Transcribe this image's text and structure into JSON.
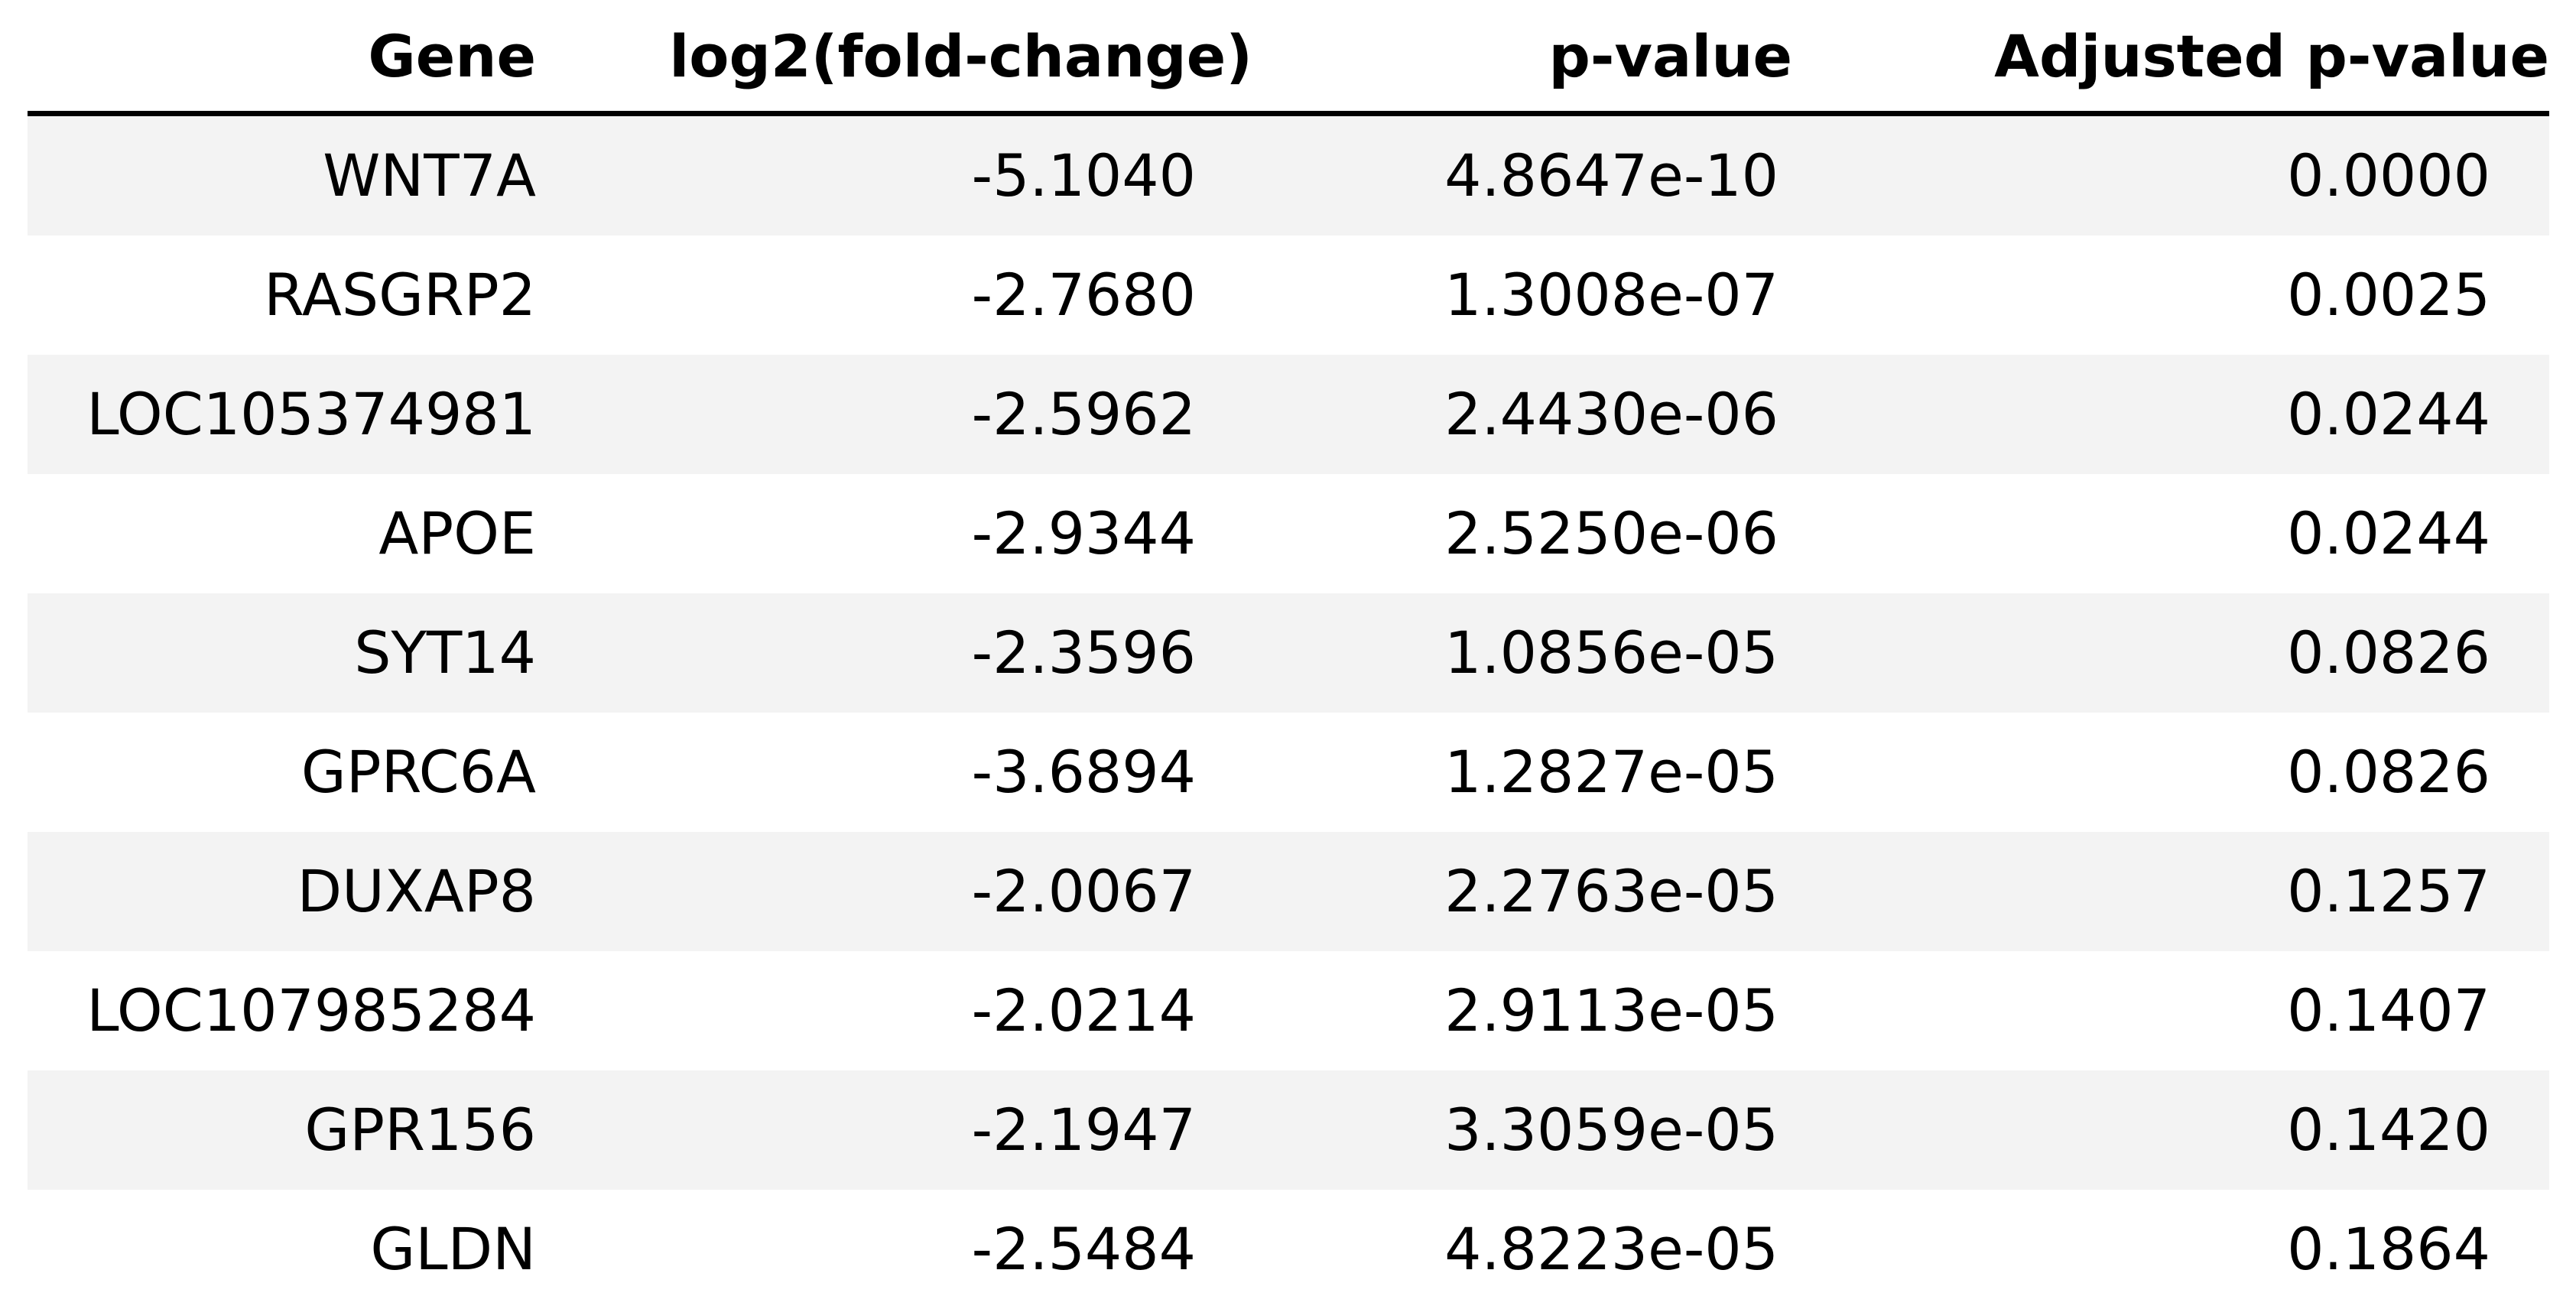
{
  "chart_data": {
    "type": "table",
    "columns": [
      "Gene",
      "log2(fold-change)",
      "p-value",
      "Adjusted p-value"
    ],
    "rows": [
      [
        "WNT7A",
        "-5.1040",
        "4.8647e-10",
        "0.0000"
      ],
      [
        "RASGRP2",
        "-2.7680",
        "1.3008e-07",
        "0.0025"
      ],
      [
        "LOC105374981",
        "-2.5962",
        "2.4430e-06",
        "0.0244"
      ],
      [
        "APOE",
        "-2.9344",
        "2.5250e-06",
        "0.0244"
      ],
      [
        "SYT14",
        "-2.3596",
        "1.0856e-05",
        "0.0826"
      ],
      [
        "GPRC6A",
        "-3.6894",
        "1.2827e-05",
        "0.0826"
      ],
      [
        "DUXAP8",
        "-2.0067",
        "2.2763e-05",
        "0.1257"
      ],
      [
        "LOC107985284",
        "-2.0214",
        "2.9113e-05",
        "0.1407"
      ],
      [
        "GPR156",
        "-2.1947",
        "3.3059e-05",
        "0.1420"
      ],
      [
        "GLDN",
        "-2.5484",
        "4.8223e-05",
        "0.1864"
      ]
    ],
    "row_stripe_color": "#f3f3f3",
    "header_rule_color": "#000000"
  }
}
